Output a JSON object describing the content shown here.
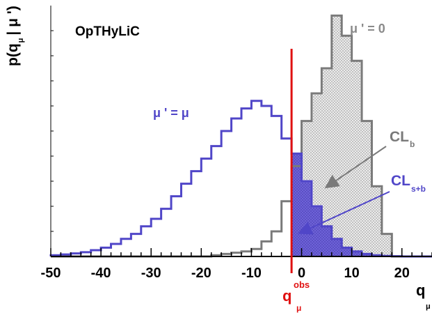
{
  "chart_data": {
    "type": "area",
    "title": "OpTHyLiC",
    "xlabel": "q_μ",
    "ylabel": "p(q_μ | μ ')",
    "xlim": [
      -50,
      26
    ],
    "ylim": [
      0,
      1.0
    ],
    "x_ticks": [
      -50,
      -40,
      -30,
      -20,
      -10,
      0,
      10,
      20
    ],
    "grid": false,
    "legend": "none",
    "bin_edges": [
      -50,
      -48,
      -46,
      -44,
      -42,
      -40,
      -38,
      -36,
      -34,
      -32,
      -30,
      -28,
      -26,
      -24,
      -22,
      -20,
      -18,
      -16,
      -14,
      -12,
      -10,
      -8,
      -6,
      -4,
      -2,
      0,
      2,
      4,
      6,
      8,
      10,
      12,
      14,
      16,
      18,
      20,
      22,
      24,
      26
    ],
    "series": [
      {
        "name": "μ ' = μ",
        "color": "#5046c8",
        "values": [
          0.005,
          0.008,
          0.012,
          0.017,
          0.025,
          0.035,
          0.05,
          0.07,
          0.09,
          0.12,
          0.15,
          0.19,
          0.24,
          0.29,
          0.34,
          0.39,
          0.44,
          0.5,
          0.55,
          0.59,
          0.62,
          0.6,
          0.56,
          0.47,
          0.41,
          0.3,
          0.2,
          0.12,
          0.07,
          0.035,
          0.02,
          0.01,
          0.005,
          0.002,
          0.001,
          0,
          0,
          0
        ]
      },
      {
        "name": "μ ' = 0",
        "color": "#7a7a7a",
        "values": [
          0,
          0,
          0,
          0,
          0,
          0,
          0,
          0,
          0,
          0,
          0,
          0,
          0,
          0,
          0,
          0,
          0.005,
          0.01,
          0.015,
          0.02,
          0.03,
          0.06,
          0.1,
          0.22,
          0.36,
          0.54,
          0.65,
          0.75,
          0.96,
          0.88,
          0.78,
          0.54,
          0.28,
          0.09,
          0,
          0,
          0,
          0
        ]
      }
    ],
    "q_obs": -2,
    "q_obs_color": "#e01010",
    "annotations": {
      "title": "OpTHyLiC",
      "mu0": "μ ' = 0",
      "mumu": "μ ' = μ",
      "clb": "CL",
      "clb_sub": "b",
      "clsb": "CL",
      "clsb_sub": "s+b",
      "qobs": "q",
      "qobs_sup": "obs",
      "qobs_sub": "μ",
      "xaxis": "q",
      "xaxis_sub": "μ",
      "yaxis_main": "p(q",
      "yaxis_rest": "| μ ')",
      "yaxis_sub": "μ"
    }
  }
}
